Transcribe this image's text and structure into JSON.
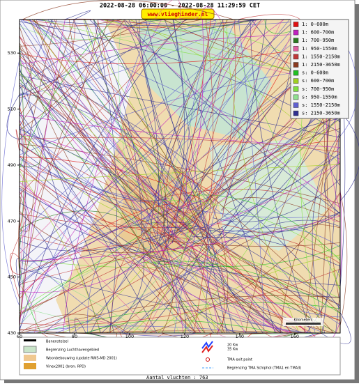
{
  "header": {
    "title": "2022-08-28 06:00:00 - 2022-08-28 11:29:59 CET",
    "url": "www.vlieghinder.nl"
  },
  "map": {
    "xlim": [
      60,
      176.5
    ],
    "ylim": [
      430,
      542
    ],
    "xticks": [
      60,
      80,
      100,
      120,
      140,
      160
    ],
    "yticks": [
      430,
      450,
      470,
      490,
      510,
      530
    ]
  },
  "legend": [
    {
      "label": "1: 0-600m",
      "color": "#e01010"
    },
    {
      "label": "1: 600-700m",
      "color": "#c020c0"
    },
    {
      "label": "1: 700-950m",
      "color": "#2a7a20"
    },
    {
      "label": "1: 950-1550m",
      "color": "#e060a0"
    },
    {
      "label": "1: 1550-2150m",
      "color": "#c03838"
    },
    {
      "label": "1: 2150-3650m",
      "color": "#8a3a20"
    },
    {
      "label": "s: 0-600m",
      "color": "#20c020"
    },
    {
      "label": "s: 600-700m",
      "color": "#a0d020"
    },
    {
      "label": "s: 700-950m",
      "color": "#80e040"
    },
    {
      "label": "s: 950-1550m",
      "color": "#90e090"
    },
    {
      "label": "s: 1550-2150m",
      "color": "#6060d0"
    },
    {
      "label": "s: 2150-3650m",
      "color": "#303090"
    }
  ],
  "scale_label": "Kilometers",
  "bottom_legend": {
    "runways": "Banenstelsel",
    "airport": "Begrenzing Luchthavengebied",
    "housing": "Woonbebouwing (update RWS-MD 2001)",
    "vinex": "Vinex2001 (bron: RPD)",
    "kw20": "20 Kw",
    "kw35": "35 Kw",
    "exit": "TMA exit point",
    "tma": "Begrenzing TMA Schiphol  (TMA1 en TMA3)"
  },
  "footer": "Aantal vluchten : 763"
}
